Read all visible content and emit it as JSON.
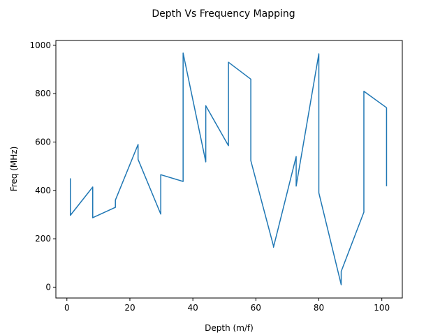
{
  "chart_data": {
    "type": "line",
    "title": "Depth Vs Frequency Mapping",
    "xlabel": "Depth (m/f)",
    "ylabel": "Freq (MHz)",
    "xlim": [
      -3.5,
      106.5
    ],
    "ylim": [
      -45,
      1020
    ],
    "xticks": [
      0,
      20,
      40,
      60,
      80,
      100
    ],
    "yticks": [
      0,
      200,
      400,
      600,
      800,
      1000
    ],
    "grid": false,
    "series": [
      {
        "color": "#1f77b4",
        "x": [
          1.1,
          1.1,
          8.2,
          8.2,
          15.4,
          15.4,
          22.6,
          22.6,
          29.8,
          29.8,
          36.9,
          36.9,
          44.1,
          44.1,
          51.3,
          51.3,
          58.4,
          58.4,
          65.6,
          65.6,
          72.8,
          72.8,
          80.0,
          80.0,
          87.1,
          87.1,
          94.3,
          94.3,
          101.5,
          101.5
        ],
        "y": [
          450,
          297,
          414,
          287,
          330,
          360,
          590,
          528,
          302,
          465,
          437,
          968,
          518,
          750,
          585,
          930,
          860,
          523,
          170,
          165,
          540,
          418,
          965,
          390,
          10,
          65,
          310,
          810,
          742,
          417
        ]
      }
    ]
  }
}
